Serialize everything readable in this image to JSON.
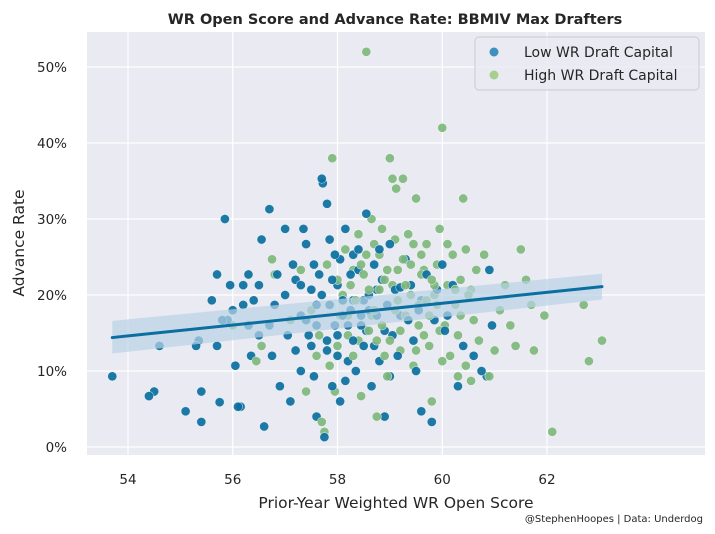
{
  "chart_data": {
    "type": "scatter",
    "title": "WR Open Score and Advance Rate: BBMIV Max Drafters",
    "xlabel": "Prior-Year Weighted WR Open Score",
    "ylabel": "Advance Rate",
    "credit": "@StephenHoopes | Data: Underdog",
    "xlim": [
      53.1,
      63.6
    ],
    "ylim": [
      -1,
      54.5
    ],
    "xticks": [
      54,
      56,
      58,
      60,
      62
    ],
    "xtick_labels": [
      "54",
      "56",
      "58",
      "60",
      "62"
    ],
    "yticks": [
      0,
      10,
      20,
      30,
      40,
      50
    ],
    "ytick_labels": [
      "0%",
      "10%",
      "20%",
      "30%",
      "40%",
      "50%"
    ],
    "grid": true,
    "legend": {
      "placement": "top-right",
      "entries": [
        {
          "label": "Low WR Draft Capital",
          "color": "#3f8fbf"
        },
        {
          "label": "High WR Draft Capital",
          "color": "#a8cf8e"
        }
      ]
    },
    "colors": {
      "low": "#0a6fa0",
      "high": "#7fb77e",
      "regression": "#0a6fa0",
      "ci_band": "#b9d3e6",
      "plot_bg": "#eaeaf2",
      "grid": "#ffffff"
    },
    "regression": {
      "x": [
        53.7,
        63.05
      ],
      "y": [
        14.4,
        21.1
      ],
      "ci_low": [
        12.3,
        19.4
      ],
      "ci_high": [
        16.6,
        22.8
      ]
    },
    "series": [
      {
        "name": "Low WR Draft Capital",
        "points": [
          [
            53.7,
            9.3
          ],
          [
            54.4,
            6.7
          ],
          [
            54.5,
            7.3
          ],
          [
            54.6,
            13.3
          ],
          [
            55.1,
            4.7
          ],
          [
            55.3,
            13.3
          ],
          [
            55.35,
            14.0
          ],
          [
            55.4,
            3.3
          ],
          [
            55.4,
            7.3
          ],
          [
            55.6,
            19.3
          ],
          [
            55.7,
            22.7
          ],
          [
            55.7,
            13.3
          ],
          [
            55.75,
            5.9
          ],
          [
            55.8,
            16.7
          ],
          [
            55.85,
            30.0
          ],
          [
            55.9,
            16.7
          ],
          [
            55.95,
            21.3
          ],
          [
            56.0,
            18.0
          ],
          [
            56.05,
            10.7
          ],
          [
            56.1,
            5.3
          ],
          [
            56.15,
            5.3
          ],
          [
            56.2,
            21.3
          ],
          [
            56.2,
            18.7
          ],
          [
            56.3,
            22.7
          ],
          [
            56.3,
            16.0
          ],
          [
            56.35,
            12.0
          ],
          [
            56.4,
            19.3
          ],
          [
            56.5,
            21.3
          ],
          [
            56.5,
            14.7
          ],
          [
            56.55,
            27.3
          ],
          [
            56.6,
            2.7
          ],
          [
            56.7,
            31.3
          ],
          [
            56.7,
            16.0
          ],
          [
            56.75,
            12.0
          ],
          [
            56.8,
            18.7
          ],
          [
            56.85,
            22.7
          ],
          [
            56.9,
            8.0
          ],
          [
            57.0,
            28.7
          ],
          [
            57.0,
            20.0
          ],
          [
            57.05,
            14.7
          ],
          [
            57.1,
            6.0
          ],
          [
            57.15,
            24.0
          ],
          [
            57.2,
            12.7
          ],
          [
            57.3,
            17.3
          ],
          [
            57.3,
            10.0
          ],
          [
            57.35,
            28.7
          ],
          [
            57.4,
            26.7
          ],
          [
            57.45,
            14.7
          ],
          [
            57.5,
            20.7
          ],
          [
            57.55,
            9.3
          ],
          [
            57.6,
            4.0
          ],
          [
            57.6,
            16.0
          ],
          [
            57.65,
            22.7
          ],
          [
            57.7,
            35.3
          ],
          [
            57.72,
            34.7
          ],
          [
            57.75,
            1.3
          ],
          [
            57.8,
            32.0
          ],
          [
            57.8,
            12.7
          ],
          [
            57.85,
            18.7
          ],
          [
            57.9,
            8.0
          ],
          [
            57.95,
            25.3
          ],
          [
            58.0,
            14.7
          ],
          [
            58.0,
            21.3
          ],
          [
            58.05,
            6.0
          ],
          [
            58.1,
            17.3
          ],
          [
            58.15,
            28.7
          ],
          [
            58.2,
            11.3
          ],
          [
            58.25,
            22.7
          ],
          [
            58.3,
            19.3
          ],
          [
            58.35,
            10.0
          ],
          [
            58.4,
            26.0
          ],
          [
            58.45,
            16.0
          ],
          [
            58.5,
            13.3
          ],
          [
            58.55,
            30.7
          ],
          [
            58.6,
            20.0
          ],
          [
            58.65,
            8.0
          ],
          [
            58.7,
            24.0
          ],
          [
            58.75,
            17.3
          ],
          [
            58.8,
            11.3
          ],
          [
            58.85,
            22.0
          ],
          [
            58.9,
            4.0
          ],
          [
            58.95,
            18.7
          ],
          [
            59.0,
            26.7
          ],
          [
            59.05,
            14.7
          ],
          [
            59.1,
            20.7
          ],
          [
            59.15,
            12.0
          ],
          [
            59.2,
            17.3
          ],
          [
            59.3,
            24.7
          ],
          [
            59.35,
            16.7
          ],
          [
            59.4,
            21.3
          ],
          [
            59.5,
            10.0
          ],
          [
            59.55,
            18.0
          ],
          [
            59.6,
            4.7
          ],
          [
            59.7,
            22.7
          ],
          [
            59.8,
            3.3
          ],
          [
            59.9,
            20.7
          ],
          [
            60.0,
            24.0
          ],
          [
            60.1,
            17.3
          ],
          [
            60.2,
            21.3
          ],
          [
            60.3,
            8.0
          ],
          [
            60.4,
            13.3
          ],
          [
            60.6,
            12.0
          ],
          [
            60.75,
            10.0
          ],
          [
            60.85,
            9.3
          ],
          [
            60.9,
            23.3
          ],
          [
            60.95,
            16.0
          ],
          [
            58.2,
            16.0
          ],
          [
            58.3,
            14.0
          ],
          [
            58.1,
            19.3
          ],
          [
            57.9,
            22.0
          ],
          [
            57.6,
            18.7
          ],
          [
            57.4,
            16.7
          ],
          [
            57.2,
            22.0
          ],
          [
            57.8,
            14.0
          ],
          [
            58.6,
            18.0
          ],
          [
            58.9,
            15.3
          ],
          [
            59.2,
            21.0
          ],
          [
            58.4,
            23.3
          ],
          [
            58.0,
            12.0
          ],
          [
            57.5,
            13.3
          ],
          [
            59.0,
            9.3
          ],
          [
            58.7,
            13.3
          ],
          [
            58.5,
            19.3
          ],
          [
            58.3,
            25.3
          ],
          [
            57.85,
            27.3
          ],
          [
            58.15,
            8.7
          ],
          [
            57.3,
            21.3
          ],
          [
            58.8,
            26.0
          ],
          [
            57.7,
            20.0
          ],
          [
            58.45,
            17.3
          ],
          [
            59.45,
            14.0
          ],
          [
            59.6,
            19.3
          ],
          [
            59.85,
            16.7
          ],
          [
            60.05,
            15.3
          ],
          [
            57.95,
            16.0
          ],
          [
            58.05,
            24.7
          ],
          [
            58.25,
            18.0
          ],
          [
            58.55,
            15.3
          ],
          [
            58.75,
            20.7
          ],
          [
            57.55,
            24.0
          ]
        ]
      },
      {
        "name": "High WR Draft Capital",
        "points": [
          [
            56.0,
            16.0
          ],
          [
            56.45,
            11.3
          ],
          [
            56.55,
            13.3
          ],
          [
            56.75,
            24.7
          ],
          [
            56.8,
            22.7
          ],
          [
            57.1,
            16.7
          ],
          [
            57.3,
            23.3
          ],
          [
            57.4,
            7.3
          ],
          [
            57.5,
            18.0
          ],
          [
            57.6,
            12.0
          ],
          [
            57.7,
            3.3
          ],
          [
            57.75,
            2.0
          ],
          [
            57.8,
            24.0
          ],
          [
            57.9,
            38.0
          ],
          [
            58.0,
            13.3
          ],
          [
            58.1,
            20.0
          ],
          [
            58.2,
            17.3
          ],
          [
            58.3,
            23.3
          ],
          [
            58.4,
            14.0
          ],
          [
            58.45,
            6.7
          ],
          [
            58.55,
            52.0
          ],
          [
            58.6,
            20.7
          ],
          [
            58.65,
            30.0
          ],
          [
            58.7,
            18.0
          ],
          [
            58.75,
            4.0
          ],
          [
            58.8,
            25.3
          ],
          [
            58.85,
            16.0
          ],
          [
            58.9,
            22.0
          ],
          [
            58.95,
            9.3
          ],
          [
            59.0,
            38.0
          ],
          [
            59.05,
            35.3
          ],
          [
            59.1,
            27.3
          ],
          [
            59.12,
            34.0
          ],
          [
            59.15,
            19.3
          ],
          [
            59.2,
            12.7
          ],
          [
            59.25,
            35.3
          ],
          [
            59.3,
            21.3
          ],
          [
            59.35,
            16.7
          ],
          [
            59.4,
            24.0
          ],
          [
            59.45,
            10.7
          ],
          [
            59.5,
            32.7
          ],
          [
            59.55,
            18.7
          ],
          [
            59.6,
            22.7
          ],
          [
            59.65,
            14.7
          ],
          [
            59.7,
            26.7
          ],
          [
            59.75,
            17.3
          ],
          [
            59.8,
            6.0
          ],
          [
            59.85,
            20.0
          ],
          [
            59.9,
            24.0
          ],
          [
            59.95,
            28.7
          ],
          [
            60.0,
            42.0
          ],
          [
            60.05,
            16.0
          ],
          [
            60.1,
            21.3
          ],
          [
            60.15,
            12.0
          ],
          [
            60.2,
            25.3
          ],
          [
            60.25,
            18.7
          ],
          [
            60.3,
            14.7
          ],
          [
            60.35,
            22.0
          ],
          [
            60.4,
            32.7
          ],
          [
            60.45,
            10.7
          ],
          [
            60.5,
            20.0
          ],
          [
            60.55,
            8.7
          ],
          [
            60.6,
            16.7
          ],
          [
            60.7,
            14.0
          ],
          [
            60.8,
            25.3
          ],
          [
            60.9,
            9.3
          ],
          [
            61.0,
            12.7
          ],
          [
            61.1,
            18.0
          ],
          [
            61.2,
            21.3
          ],
          [
            61.3,
            16.0
          ],
          [
            61.4,
            13.3
          ],
          [
            61.5,
            26.0
          ],
          [
            61.6,
            22.0
          ],
          [
            61.7,
            18.7
          ],
          [
            61.75,
            12.7
          ],
          [
            61.95,
            17.3
          ],
          [
            62.1,
            2.0
          ],
          [
            62.7,
            18.7
          ],
          [
            62.8,
            11.3
          ],
          [
            63.05,
            14.0
          ],
          [
            58.25,
            21.3
          ],
          [
            58.35,
            19.3
          ],
          [
            58.5,
            22.7
          ],
          [
            58.65,
            17.3
          ],
          [
            58.8,
            20.7
          ],
          [
            58.95,
            23.3
          ],
          [
            59.1,
            18.0
          ],
          [
            59.25,
            24.7
          ],
          [
            59.4,
            20.0
          ],
          [
            59.55,
            16.0
          ],
          [
            59.7,
            19.3
          ],
          [
            59.85,
            21.3
          ],
          [
            58.15,
            26.0
          ],
          [
            58.4,
            28.0
          ],
          [
            58.6,
            15.3
          ],
          [
            58.9,
            12.0
          ],
          [
            59.2,
            15.3
          ],
          [
            59.35,
            28.0
          ],
          [
            59.65,
            23.3
          ],
          [
            59.95,
            15.3
          ],
          [
            58.05,
            17.3
          ],
          [
            58.55,
            25.3
          ],
          [
            58.75,
            14.0
          ],
          [
            59.05,
            21.3
          ],
          [
            59.3,
            17.3
          ],
          [
            59.5,
            12.7
          ],
          [
            59.8,
            22.0
          ],
          [
            60.1,
            26.7
          ],
          [
            58.3,
            12.0
          ],
          [
            58.45,
            24.0
          ],
          [
            59.0,
            14.0
          ],
          [
            59.6,
            25.3
          ],
          [
            60.25,
            20.7
          ],
          [
            57.95,
            7.3
          ],
          [
            58.85,
            28.7
          ],
          [
            59.15,
            23.3
          ],
          [
            59.75,
            13.3
          ],
          [
            60.35,
            17.3
          ],
          [
            60.55,
            20.7
          ],
          [
            60.65,
            23.3
          ],
          [
            58.2,
            14.7
          ],
          [
            58.7,
            26.7
          ],
          [
            59.45,
            26.7
          ],
          [
            59.9,
            18.7
          ],
          [
            60.0,
            11.3
          ],
          [
            60.3,
            9.3
          ],
          [
            60.45,
            26.0
          ],
          [
            57.65,
            14.7
          ],
          [
            57.85,
            10.7
          ],
          [
            58.0,
            22.0
          ]
        ]
      }
    ]
  }
}
